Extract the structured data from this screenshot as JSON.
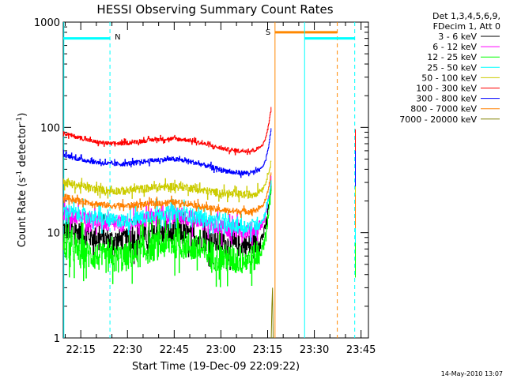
{
  "chart_data": {
    "type": "line",
    "title": "HESSI Observing Summary Count Rates",
    "xlabel": "Start Time (19-Dec-09 22:09:22)",
    "ylabel": "Count Rate (s",
    "ylabel_sup": "-1",
    "ylabel_tail": " detector",
    "ylabel_sup2": "-1",
    "ylabel_close": ")",
    "yscale": "log",
    "ylim": [
      1,
      1000
    ],
    "xlim_minutes": [
      0,
      98
    ],
    "x_tick_labels": [
      "22:15",
      "22:30",
      "22:45",
      "23:00",
      "23:15",
      "23:30",
      "23:45"
    ],
    "x_tick_minutes": [
      5.63,
      20.63,
      35.63,
      50.63,
      65.63,
      80.63,
      95.63
    ],
    "y_tick_labels": [
      "1",
      "10",
      "100",
      "1000"
    ],
    "y_tick_values": [
      1,
      10,
      100,
      1000
    ],
    "legend_header": [
      "Det 1,3,4,5,6,9,",
      "FDecim 1, Att 0"
    ],
    "legend_position": "right",
    "footer_date": "14-May-2010 13:07",
    "annotations": [
      {
        "label": "N",
        "color": "#00ffff",
        "x_minutes": 15.0
      },
      {
        "label": "S",
        "color": "#ff8800",
        "x_minutes": 68.0
      }
    ],
    "series": [
      {
        "name": "3 - 6 keV",
        "color": "#000000",
        "x_minutes": [
          0,
          5,
          10,
          15,
          20,
          25,
          30,
          35,
          40,
          45,
          50,
          55,
          60,
          62,
          64,
          65,
          66,
          66.8
        ],
        "values": [
          11,
          10,
          9,
          8.5,
          8.5,
          9,
          9.5,
          10,
          9.5,
          8.5,
          8,
          7.5,
          7.5,
          8,
          9,
          12,
          18,
          28
        ]
      },
      {
        "name": "6 - 12 keV",
        "color": "#ff00ff",
        "x_minutes": [
          0,
          5,
          10,
          15,
          20,
          25,
          30,
          35,
          40,
          45,
          50,
          55,
          60,
          62,
          64,
          65,
          66,
          66.8
        ],
        "values": [
          15,
          14,
          13,
          12,
          12,
          13,
          14,
          14.5,
          14,
          12.5,
          11.5,
          10.5,
          10.5,
          11,
          12,
          15,
          22,
          35
        ]
      },
      {
        "name": "12 - 25 keV",
        "color": "#00ff00",
        "x_minutes": [
          0,
          5,
          10,
          15,
          20,
          25,
          30,
          35,
          40,
          45,
          50,
          55,
          60,
          62,
          64,
          65,
          66,
          66.8
        ],
        "values": [
          7.5,
          6.5,
          6,
          5.5,
          5.8,
          6.5,
          7.5,
          8,
          7.5,
          6.5,
          5.8,
          5.5,
          5.5,
          6,
          7,
          10,
          16,
          30
        ]
      },
      {
        "name": "25 - 50 keV",
        "color": "#00ffff",
        "x_minutes": [
          0,
          5,
          10,
          15,
          20,
          25,
          30,
          35,
          40,
          45,
          50,
          55,
          60,
          62,
          64,
          65,
          66,
          66.8
        ],
        "values": [
          16,
          15,
          14,
          13,
          13,
          14,
          15,
          15.5,
          15,
          13.5,
          12.5,
          11.5,
          11.5,
          12,
          13,
          16,
          22,
          32
        ]
      },
      {
        "name": "50 - 100 keV",
        "color": "#cccc00",
        "x_minutes": [
          0,
          5,
          10,
          15,
          20,
          25,
          30,
          35,
          40,
          45,
          50,
          55,
          60,
          62,
          64,
          65,
          66,
          66.8
        ],
        "values": [
          30,
          28,
          26,
          25,
          25,
          26,
          27,
          27.5,
          27,
          25,
          24,
          23,
          23,
          24,
          26,
          30,
          38,
          50
        ]
      },
      {
        "name": "100 - 300 keV",
        "color": "#ff0000",
        "x_minutes": [
          0,
          5,
          10,
          15,
          20,
          25,
          30,
          35,
          40,
          45,
          50,
          55,
          60,
          62,
          64,
          65,
          66,
          66.8
        ],
        "values": [
          88,
          80,
          73,
          70,
          71,
          74,
          77,
          78,
          76,
          70,
          64,
          60,
          60,
          62,
          68,
          80,
          110,
          160
        ]
      },
      {
        "name": "300 - 800 keV",
        "color": "#0000ff",
        "x_minutes": [
          0,
          5,
          10,
          15,
          20,
          25,
          30,
          35,
          40,
          45,
          50,
          55,
          60,
          62,
          64,
          65,
          66,
          66.8
        ],
        "values": [
          55,
          50,
          47,
          45,
          45,
          47,
          49,
          50,
          48,
          44,
          40,
          37,
          37,
          38,
          42,
          50,
          68,
          100
        ]
      },
      {
        "name": "800 - 7000 keV",
        "color": "#ff8000",
        "x_minutes": [
          0,
          5,
          10,
          15,
          20,
          25,
          30,
          35,
          40,
          45,
          50,
          55,
          60,
          62,
          64,
          65,
          66,
          66.8
        ],
        "values": [
          22,
          20,
          19,
          18,
          18,
          18.5,
          19,
          19.5,
          19,
          17.5,
          16.5,
          16,
          16,
          16.5,
          18,
          21,
          27,
          38
        ]
      },
      {
        "name": "7000 - 20000 keV",
        "color": "#808000",
        "x_minutes": [
          66.8,
          67.0,
          67.2,
          67.4
        ],
        "values": [
          1,
          2,
          3,
          1
        ]
      }
    ]
  }
}
